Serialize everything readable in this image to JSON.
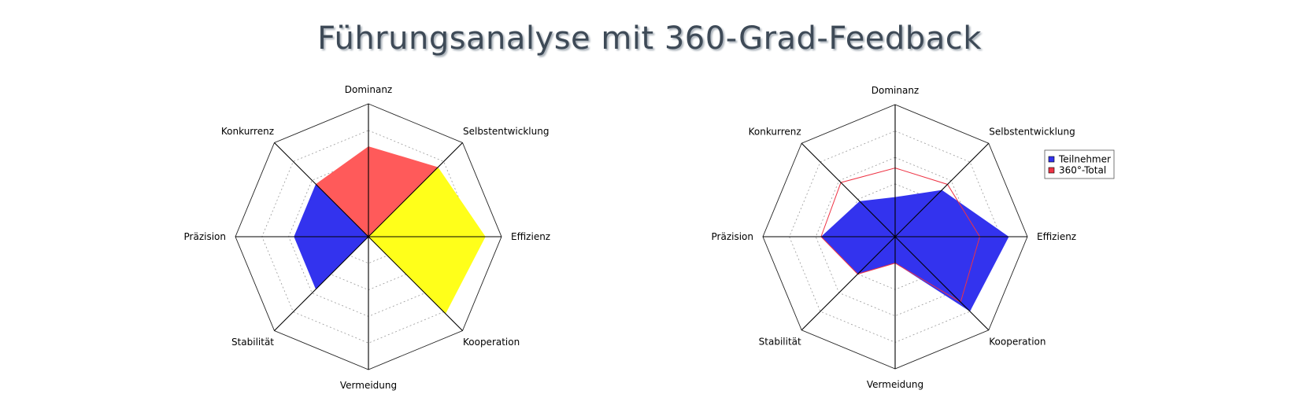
{
  "title": "Führungsanalyse mit 360-Grad-Feedback",
  "chart_data": [
    {
      "type": "radar",
      "axes": [
        "Dominanz",
        "Selbstentwicklung",
        "Effizienz",
        "Kooperation",
        "Vermeidung",
        "Stabilität",
        "Präzision",
        "Konkurrenz"
      ],
      "rmax": 5,
      "rings": 5,
      "grid": true,
      "legend": false,
      "sectors": [
        {
          "axes": [
            "Konkurrenz",
            "Dominanz",
            "Selbstentwicklung"
          ],
          "values": [
            2.8,
            3.4,
            3.7
          ],
          "color": "#ff5a5a"
        },
        {
          "axes": [
            "Selbstentwicklung",
            "Effizienz",
            "Kooperation"
          ],
          "values": [
            3.7,
            4.4,
            4.1
          ],
          "color": "#ffff1a"
        },
        {
          "axes": [
            "Kooperation",
            "Vermeidung",
            "Stabilität"
          ],
          "values": [
            4.1,
            0,
            2.8
          ],
          "color": "#44dd44"
        },
        {
          "axes": [
            "Stabilität",
            "Präzision",
            "Konkurrenz"
          ],
          "values": [
            2.8,
            2.8,
            2.8
          ],
          "color": "#3333ee"
        }
      ]
    },
    {
      "type": "radar",
      "axes": [
        "Dominanz",
        "Selbstentwicklung",
        "Effizienz",
        "Kooperation",
        "Vermeidung",
        "Stabilität",
        "Präzision",
        "Konkurrenz"
      ],
      "rmax": 5,
      "rings": 5,
      "grid": true,
      "legend": "top-right",
      "series": [
        {
          "name": "Teilnehmer",
          "values": [
            1.5,
            2.5,
            4.3,
            4.0,
            1.0,
            2.0,
            2.8,
            1.9
          ],
          "color": "#3333ee",
          "fill": true
        },
        {
          "name": "360°-Total",
          "values": [
            2.6,
            2.8,
            3.2,
            3.5,
            1.0,
            2.0,
            2.8,
            2.9
          ],
          "color": "#ee3344",
          "fill": false
        }
      ]
    }
  ]
}
